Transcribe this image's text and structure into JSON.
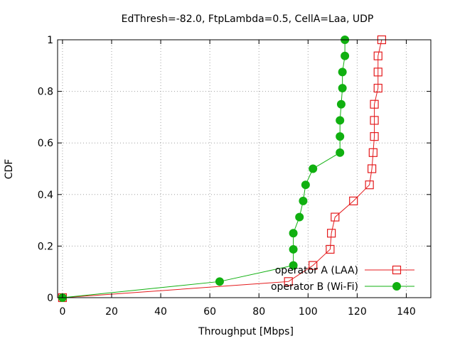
{
  "chart_data": {
    "type": "line",
    "title": "EdThresh=-82.0, FtpLambda=0.5, CellA=Laa, UDP",
    "xlabel": "Throughput [Mbps]",
    "ylabel": "CDF",
    "xlim": [
      -2,
      150
    ],
    "ylim": [
      0,
      1
    ],
    "xticks": [
      0,
      20,
      40,
      60,
      80,
      100,
      120,
      140
    ],
    "yticks": [
      0,
      0.2,
      0.4,
      0.6,
      0.8,
      1
    ],
    "xtick_labels": [
      "0",
      "20",
      "40",
      "60",
      "80",
      "100",
      "120",
      "140"
    ],
    "ytick_labels": [
      "0",
      "0.2",
      "0.4",
      "0.6",
      "0.8",
      "1"
    ],
    "grid": true,
    "legend_position": "bottom-right",
    "series": [
      {
        "name": "operator A (LAA)",
        "color": "#e41a1c",
        "marker": "open-square",
        "points": [
          [
            0,
            0
          ],
          [
            92,
            0.0625
          ],
          [
            102,
            0.125
          ],
          [
            109,
            0.1875
          ],
          [
            109.5,
            0.25
          ],
          [
            111,
            0.3125
          ],
          [
            118.5,
            0.375
          ],
          [
            125,
            0.4375
          ],
          [
            126,
            0.5
          ],
          [
            126.5,
            0.5625
          ],
          [
            127,
            0.625
          ],
          [
            127,
            0.6875
          ],
          [
            127,
            0.75
          ],
          [
            128.5,
            0.8125
          ],
          [
            128.5,
            0.875
          ],
          [
            128.5,
            0.9375
          ],
          [
            130,
            1.0
          ]
        ]
      },
      {
        "name": "operator B (Wi-Fi)",
        "color": "#10b010",
        "marker": "filled-circle",
        "points": [
          [
            0,
            0
          ],
          [
            64,
            0.0625
          ],
          [
            94,
            0.125
          ],
          [
            94,
            0.1875
          ],
          [
            94,
            0.25
          ],
          [
            96.5,
            0.3125
          ],
          [
            98,
            0.375
          ],
          [
            99,
            0.4375
          ],
          [
            102,
            0.5
          ],
          [
            113,
            0.5625
          ],
          [
            113,
            0.625
          ],
          [
            113,
            0.6875
          ],
          [
            113.5,
            0.75
          ],
          [
            114,
            0.8125
          ],
          [
            114,
            0.875
          ],
          [
            115,
            0.9375
          ],
          [
            115,
            1.0
          ]
        ]
      }
    ]
  }
}
